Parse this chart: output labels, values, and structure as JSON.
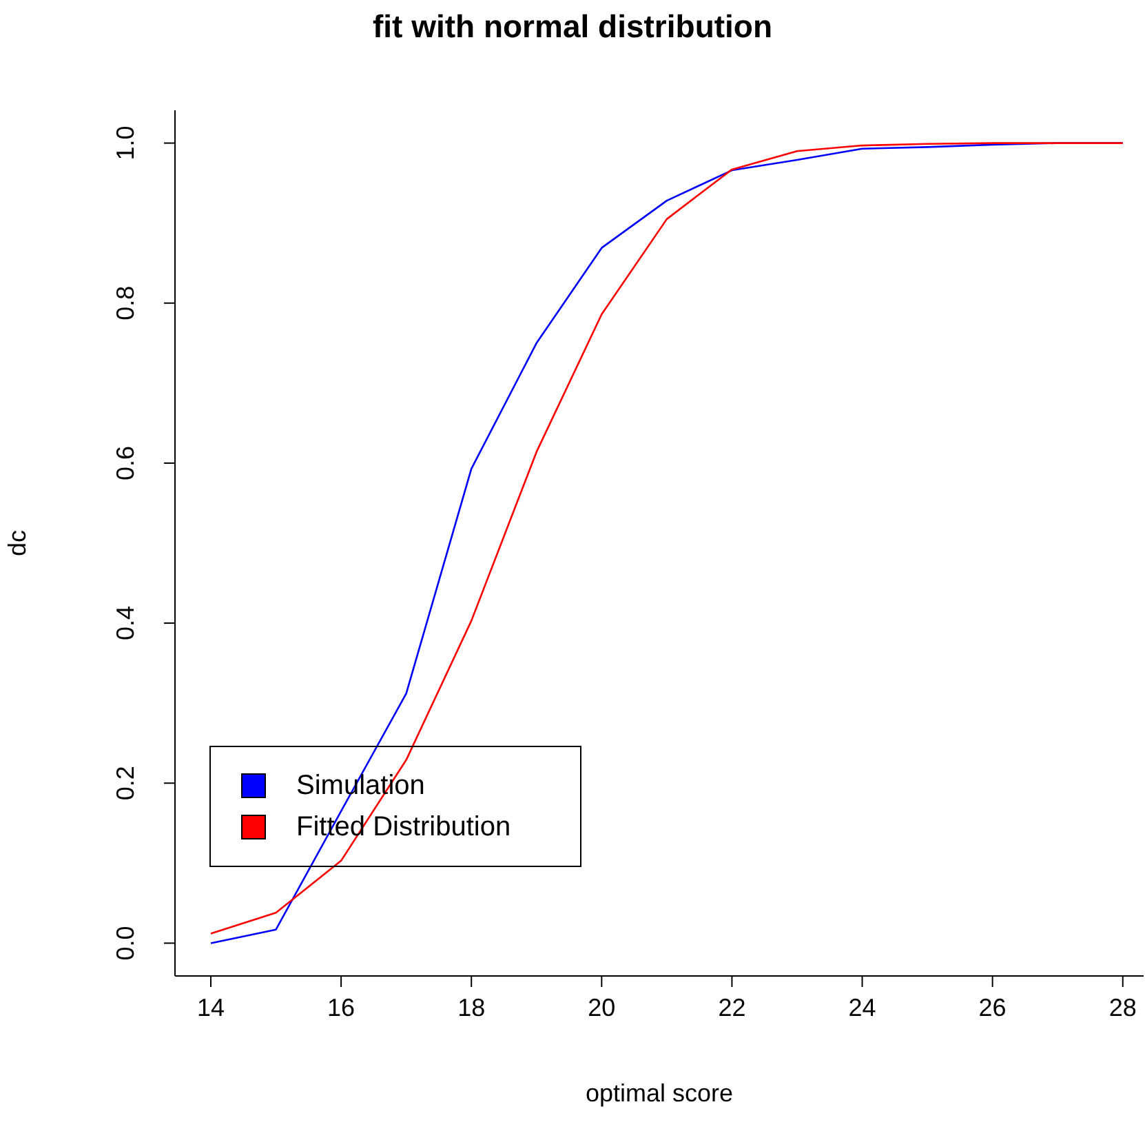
{
  "chart_data": {
    "type": "line",
    "title": "fit with normal distribution",
    "xlabel": "optimal score",
    "ylabel": "dc",
    "x": [
      14,
      15,
      16,
      17,
      18,
      19,
      20,
      21,
      22,
      23,
      24,
      25,
      26,
      27,
      28
    ],
    "series": [
      {
        "name": "Simulation",
        "color": "#0000ff",
        "values": [
          0.0,
          0.017,
          0.165,
          0.312,
          0.593,
          0.75,
          0.869,
          0.928,
          0.966,
          0.979,
          0.993,
          0.995,
          0.998,
          1.0,
          1.0
        ]
      },
      {
        "name": "Fitted Distribution",
        "color": "#ff0000",
        "values": [
          0.012,
          0.038,
          0.103,
          0.229,
          0.403,
          0.614,
          0.786,
          0.905,
          0.967,
          0.99,
          0.997,
          0.999,
          1.0,
          1.0,
          1.0
        ]
      }
    ],
    "xlim": [
      13.45,
      28.32
    ],
    "ylim": [
      -0.041,
      1.041
    ],
    "xticks": [
      14,
      16,
      18,
      20,
      22,
      24,
      26,
      28
    ],
    "yticks": [
      {
        "value": 0,
        "label": "0.0"
      },
      {
        "value": 0.2,
        "label": "0.2"
      },
      {
        "value": 0.4,
        "label": "0.4"
      },
      {
        "value": 0.6,
        "label": "0.6"
      },
      {
        "value": 0.8,
        "label": "0.8"
      },
      {
        "value": 1,
        "label": "1.0"
      }
    ],
    "legend": "bottom left",
    "marker": "none",
    "line_style": "solid",
    "grid": false
  }
}
